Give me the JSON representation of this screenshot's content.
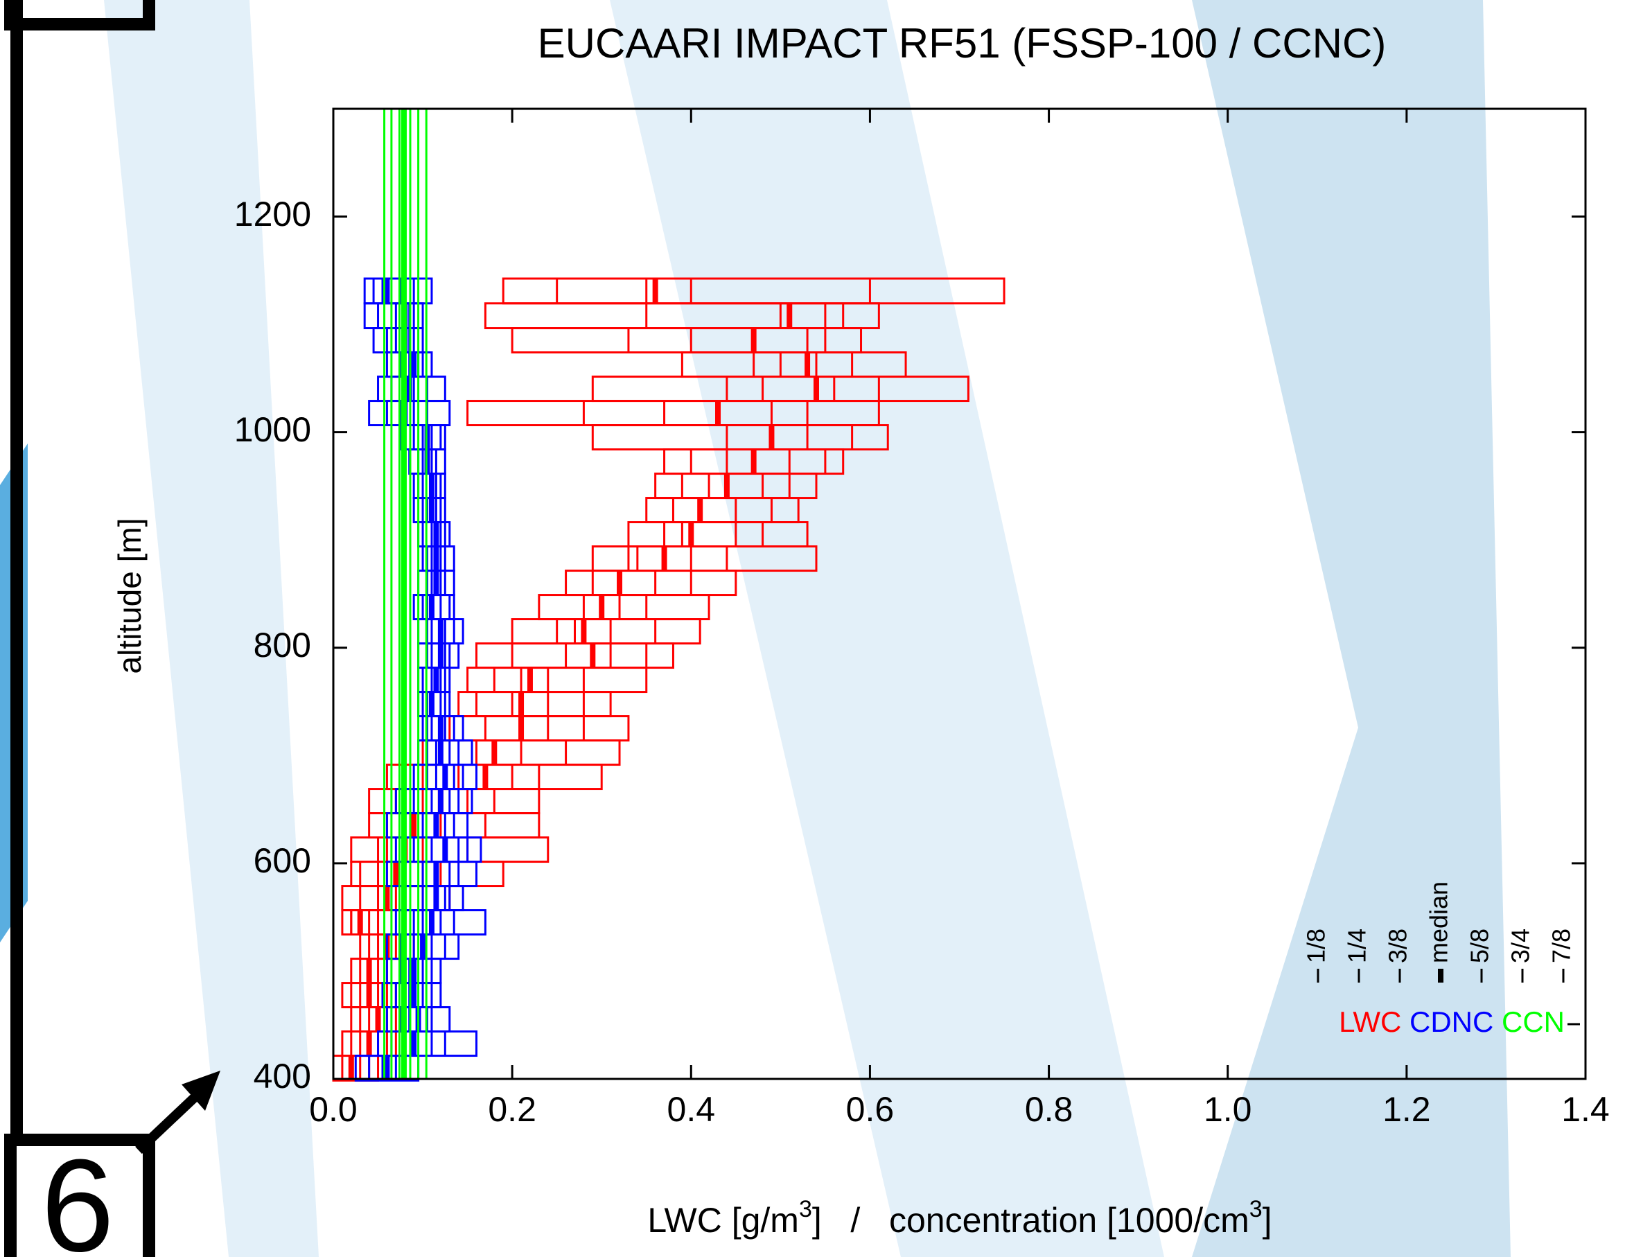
{
  "chart_data": {
    "type": "box",
    "title": "EUCAARI IMPACT RF51 (FSSP-100 / CCNC)",
    "ylabel": "altitude [m]",
    "xlabel_parts": [
      "LWC [g/m",
      "3",
      "]   /   concentration [1000/cm",
      "3",
      "]"
    ],
    "xlim": [
      0,
      1.4
    ],
    "xticks": [
      {
        "value": 0,
        "label": "0.0"
      },
      0.2,
      0.4,
      0.6,
      0.8,
      {
        "value": 1,
        "label": "1.0"
      },
      1.2,
      1.4
    ],
    "ylim": [
      400,
      1300
    ],
    "yticks": [
      400,
      600,
      800,
      1000,
      1200
    ],
    "quantiles": [
      "1/8",
      "1/4",
      "3/8",
      "median",
      "5/8",
      "3/4",
      "7/8"
    ],
    "altitudes": [
      1131,
      1108,
      1085,
      1063,
      1040,
      1018,
      995,
      973,
      950,
      928,
      905,
      883,
      860,
      838,
      815,
      793,
      770,
      748,
      725,
      703,
      680,
      658,
      635,
      613,
      590,
      568,
      545,
      523,
      500,
      478,
      455,
      433,
      410
    ],
    "series": [
      {
        "name": "LWC",
        "color": "#ff0000",
        "values": [
          [
            0.19,
            0.25,
            0.35,
            0.36,
            0.4,
            0.6,
            0.75
          ],
          [
            0.17,
            0.35,
            0.5,
            0.51,
            0.55,
            0.57,
            0.61
          ],
          [
            0.2,
            0.33,
            0.4,
            0.47,
            0.53,
            0.55,
            0.59
          ],
          [
            0.39,
            0.47,
            0.5,
            0.53,
            0.54,
            0.58,
            0.64
          ],
          [
            0.29,
            0.44,
            0.48,
            0.54,
            0.56,
            0.61,
            0.71
          ],
          [
            0.15,
            0.28,
            0.37,
            0.43,
            0.49,
            0.53,
            0.61
          ],
          [
            0.29,
            0.44,
            0.49,
            0.49,
            0.53,
            0.58,
            0.62
          ],
          [
            0.37,
            0.4,
            0.44,
            0.47,
            0.51,
            0.55,
            0.57
          ],
          [
            0.36,
            0.39,
            0.42,
            0.44,
            0.48,
            0.51,
            0.54
          ],
          [
            0.35,
            0.38,
            0.41,
            0.41,
            0.45,
            0.49,
            0.52
          ],
          [
            0.33,
            0.37,
            0.39,
            0.4,
            0.45,
            0.48,
            0.53
          ],
          [
            0.29,
            0.33,
            0.34,
            0.37,
            0.4,
            0.44,
            0.54
          ],
          [
            0.26,
            0.29,
            0.32,
            0.32,
            0.36,
            0.4,
            0.45
          ],
          [
            0.23,
            0.28,
            0.3,
            0.3,
            0.32,
            0.35,
            0.42
          ],
          [
            0.2,
            0.25,
            0.27,
            0.28,
            0.31,
            0.36,
            0.41
          ],
          [
            0.16,
            0.2,
            0.26,
            0.29,
            0.31,
            0.35,
            0.38
          ],
          [
            0.15,
            0.18,
            0.21,
            0.22,
            0.24,
            0.28,
            0.35
          ],
          [
            0.14,
            0.16,
            0.2,
            0.21,
            0.24,
            0.28,
            0.31
          ],
          [
            0.11,
            0.13,
            0.17,
            0.21,
            0.24,
            0.28,
            0.33
          ],
          [
            0.1,
            0.12,
            0.16,
            0.18,
            0.21,
            0.26,
            0.32
          ],
          [
            0.06,
            0.1,
            0.14,
            0.17,
            0.2,
            0.23,
            0.3
          ],
          [
            0.04,
            0.07,
            0.1,
            0.12,
            0.15,
            0.18,
            0.23
          ],
          [
            0.04,
            0.06,
            0.08,
            0.09,
            0.12,
            0.17,
            0.23
          ],
          [
            0.02,
            0.05,
            0.06,
            0.08,
            0.1,
            0.15,
            0.24
          ],
          [
            0.02,
            0.03,
            0.05,
            0.07,
            0.1,
            0.12,
            0.19
          ],
          [
            0.01,
            0.03,
            0.05,
            0.06,
            0.07,
            0.1,
            0.13
          ],
          [
            0.01,
            0.02,
            0.02,
            0.03,
            0.04,
            0.05,
            0.08
          ],
          [
            0.03,
            0.04,
            0.05,
            0.06,
            0.06,
            0.07,
            0.09
          ],
          [
            0.02,
            0.03,
            0.04,
            0.04,
            0.05,
            0.06,
            0.08
          ],
          [
            0.01,
            0.02,
            0.03,
            0.04,
            0.05,
            0.06,
            0.07
          ],
          [
            0.02,
            0.03,
            0.04,
            0.05,
            0.06,
            0.07,
            0.08
          ],
          [
            0.01,
            0.02,
            0.03,
            0.04,
            0.05,
            0.06,
            0.07
          ],
          [
            0.0,
            0.01,
            0.02,
            0.02,
            0.03,
            0.04,
            0.05
          ]
        ]
      },
      {
        "name": "CDNC",
        "color": "#0000ff",
        "values": [
          [
            0.035,
            0.045,
            0.055,
            0.06,
            0.075,
            0.09,
            0.11
          ],
          [
            0.035,
            0.05,
            0.07,
            0.08,
            0.085,
            0.09,
            0.1
          ],
          [
            0.045,
            0.06,
            0.07,
            0.08,
            0.085,
            0.09,
            0.1
          ],
          [
            0.06,
            0.075,
            0.085,
            0.09,
            0.095,
            0.1,
            0.11
          ],
          [
            0.05,
            0.065,
            0.08,
            0.085,
            0.09,
            0.105,
            0.125
          ],
          [
            0.04,
            0.06,
            0.075,
            0.08,
            0.09,
            0.105,
            0.13
          ],
          [
            0.075,
            0.09,
            0.1,
            0.105,
            0.11,
            0.12,
            0.125
          ],
          [
            0.085,
            0.095,
            0.1,
            0.105,
            0.11,
            0.115,
            0.125
          ],
          [
            0.09,
            0.095,
            0.1,
            0.11,
            0.115,
            0.12,
            0.125
          ],
          [
            0.09,
            0.1,
            0.105,
            0.11,
            0.115,
            0.12,
            0.125
          ],
          [
            0.095,
            0.1,
            0.11,
            0.115,
            0.12,
            0.125,
            0.13
          ],
          [
            0.1,
            0.105,
            0.11,
            0.115,
            0.12,
            0.125,
            0.135
          ],
          [
            0.095,
            0.105,
            0.11,
            0.115,
            0.12,
            0.125,
            0.135
          ],
          [
            0.09,
            0.1,
            0.105,
            0.11,
            0.12,
            0.13,
            0.135
          ],
          [
            0.095,
            0.105,
            0.11,
            0.12,
            0.125,
            0.135,
            0.145
          ],
          [
            0.095,
            0.105,
            0.11,
            0.12,
            0.125,
            0.13,
            0.14
          ],
          [
            0.095,
            0.1,
            0.11,
            0.115,
            0.12,
            0.125,
            0.13
          ],
          [
            0.095,
            0.1,
            0.105,
            0.11,
            0.12,
            0.125,
            0.13
          ],
          [
            0.1,
            0.105,
            0.11,
            0.12,
            0.125,
            0.135,
            0.145
          ],
          [
            0.095,
            0.105,
            0.115,
            0.12,
            0.13,
            0.14,
            0.155
          ],
          [
            0.09,
            0.105,
            0.115,
            0.125,
            0.135,
            0.145,
            0.16
          ],
          [
            0.07,
            0.09,
            0.11,
            0.12,
            0.13,
            0.14,
            0.155
          ],
          [
            0.06,
            0.08,
            0.1,
            0.115,
            0.125,
            0.135,
            0.15
          ],
          [
            0.07,
            0.09,
            0.11,
            0.125,
            0.14,
            0.15,
            0.165
          ],
          [
            0.06,
            0.08,
            0.1,
            0.115,
            0.13,
            0.14,
            0.16
          ],
          [
            0.065,
            0.08,
            0.1,
            0.115,
            0.125,
            0.13,
            0.145
          ],
          [
            0.07,
            0.09,
            0.1,
            0.11,
            0.12,
            0.135,
            0.17
          ],
          [
            0.06,
            0.075,
            0.09,
            0.1,
            0.11,
            0.125,
            0.14
          ],
          [
            0.06,
            0.075,
            0.085,
            0.09,
            0.1,
            0.11,
            0.12
          ],
          [
            0.055,
            0.07,
            0.085,
            0.09,
            0.1,
            0.11,
            0.12
          ],
          [
            0.06,
            0.075,
            0.085,
            0.095,
            0.105,
            0.11,
            0.13
          ],
          [
            0.05,
            0.065,
            0.08,
            0.09,
            0.11,
            0.125,
            0.16
          ],
          [
            0.025,
            0.04,
            0.055,
            0.06,
            0.07,
            0.08,
            0.095
          ]
        ]
      },
      {
        "name": "CCN",
        "color": "#00ff00",
        "values": [
          [
            0.057,
            0.065,
            0.074,
            0.079,
            0.086,
            0.095,
            0.104
          ]
        ]
      }
    ]
  }
}
